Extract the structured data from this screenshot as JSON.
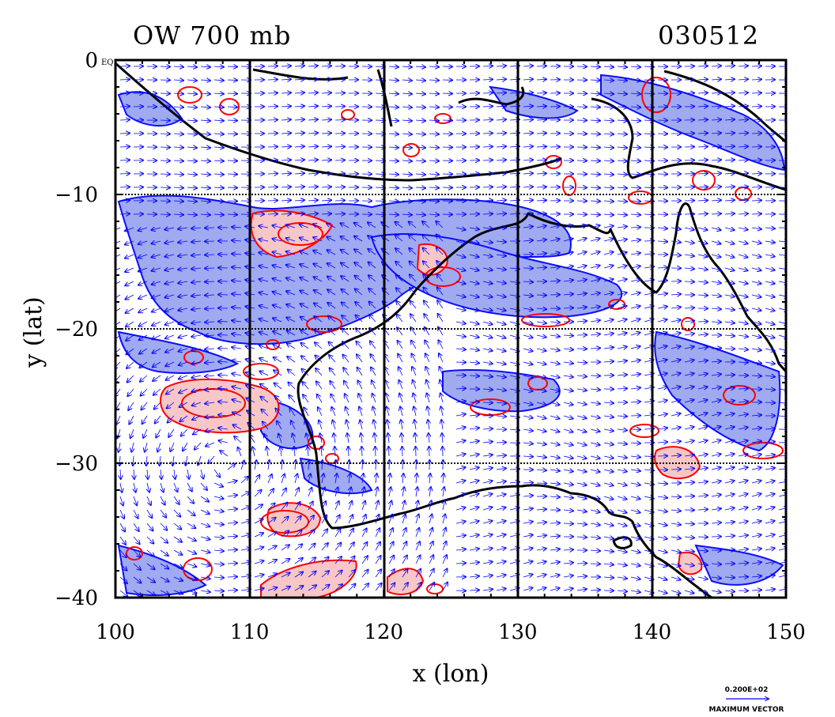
{
  "title_left": "OW 700 mb",
  "title_right": "030512",
  "equator_marker": "EQ",
  "x_axis_label": "x (lon)",
  "y_axis_label": "y (lat)",
  "legend": {
    "value": "0.200E+02",
    "label": "MAXIMUM VECTOR"
  },
  "colors": {
    "positive_contour": "#ff0000",
    "positive_fill": "#f7c6c6",
    "negative_contour": "#0000ff",
    "negative_fill": "#9aa6f0",
    "vector": "#0000ff",
    "coastline": "#000000"
  },
  "chart_data": {
    "type": "contour-vector map",
    "x": {
      "label": "x (lon)",
      "range": [
        100,
        150
      ],
      "ticks": [
        100,
        110,
        120,
        130,
        140,
        150
      ],
      "tick_labels": [
        "100",
        "110",
        "120",
        "130",
        "140",
        "150"
      ]
    },
    "y": {
      "label": "y (lat)",
      "range": [
        -40,
        0
      ],
      "ticks": [
        0,
        -10,
        -20,
        -30,
        -40
      ],
      "tick_labels": [
        "0",
        "−10",
        "−20",
        "−30",
        "−40"
      ]
    },
    "grid": true,
    "field": "OW",
    "level": "700 mb",
    "date": "030512",
    "reference_vector": "0.200E+02"
  }
}
